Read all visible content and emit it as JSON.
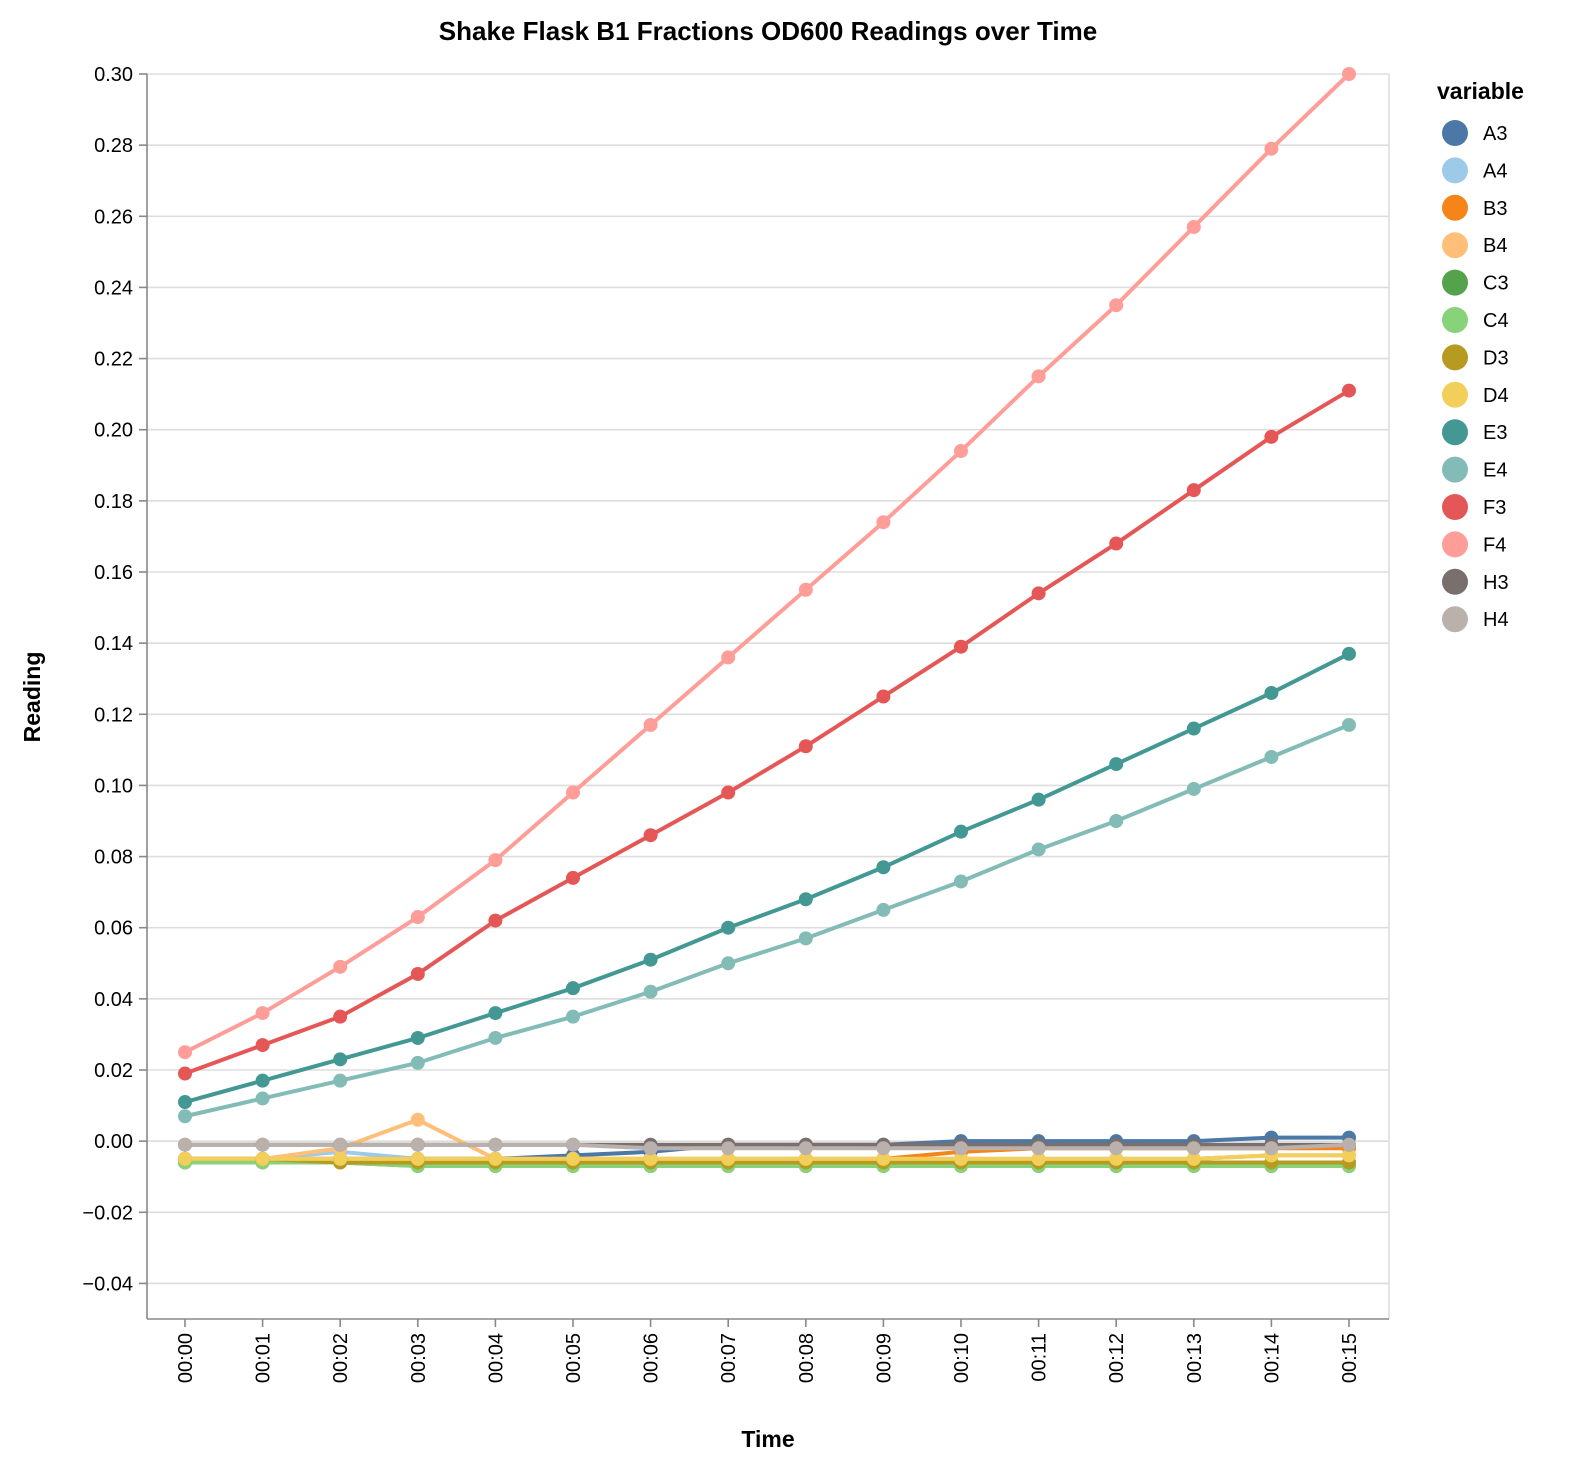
{
  "chart_data": {
    "type": "line",
    "title": "Shake Flask B1 Fractions OD600 Readings over Time",
    "xlabel": "Time",
    "ylabel": "Reading",
    "x": [
      "00:00",
      "00:01",
      "00:02",
      "00:03",
      "00:04",
      "00:05",
      "00:06",
      "00:07",
      "00:08",
      "00:09",
      "00:10",
      "00:11",
      "00:12",
      "00:13",
      "00:14",
      "00:15"
    ],
    "ylim": [
      -0.05,
      0.3
    ],
    "yticks": [
      "0.30",
      "0.28",
      "0.26",
      "0.24",
      "0.22",
      "0.20",
      "0.18",
      "0.16",
      "0.14",
      "0.12",
      "0.10",
      "0.08",
      "0.06",
      "0.04",
      "0.02",
      "0.00",
      "−0.02",
      "−0.04"
    ],
    "ytick_values": [
      0.3,
      0.28,
      0.26,
      0.24,
      0.22,
      0.2,
      0.18,
      0.16,
      0.14,
      0.12,
      0.1,
      0.08,
      0.06,
      0.04,
      0.02,
      0.0,
      -0.02,
      -0.04
    ],
    "grid": true,
    "legend_title": "variable",
    "legend_position": "right",
    "series": [
      {
        "name": "A3",
        "color": "#4c78a8",
        "values": [
          -0.005,
          -0.005,
          -0.005,
          -0.005,
          -0.005,
          -0.004,
          -0.003,
          -0.001,
          -0.001,
          -0.001,
          0.0,
          0.0,
          0.0,
          0.0,
          0.001,
          0.001
        ]
      },
      {
        "name": "A4",
        "color": "#9ecae9",
        "values": [
          -0.005,
          -0.005,
          -0.003,
          -0.005,
          -0.005,
          -0.005,
          -0.005,
          -0.005,
          -0.005,
          -0.005,
          -0.005,
          -0.005,
          -0.005,
          -0.005,
          -0.004,
          -0.004
        ]
      },
      {
        "name": "B3",
        "color": "#f58518",
        "values": [
          -0.005,
          -0.005,
          -0.005,
          -0.005,
          -0.005,
          -0.005,
          -0.005,
          -0.005,
          -0.005,
          -0.005,
          -0.003,
          -0.002,
          -0.002,
          -0.002,
          -0.002,
          -0.002
        ]
      },
      {
        "name": "B4",
        "color": "#ffbf79",
        "values": [
          -0.005,
          -0.005,
          -0.002,
          0.006,
          -0.005,
          -0.005,
          -0.005,
          -0.005,
          -0.005,
          -0.005,
          -0.005,
          -0.005,
          -0.005,
          -0.005,
          -0.004,
          -0.004
        ]
      },
      {
        "name": "C3",
        "color": "#54a24b",
        "values": [
          -0.006,
          -0.006,
          -0.006,
          -0.007,
          -0.007,
          -0.007,
          -0.007,
          -0.007,
          -0.007,
          -0.007,
          -0.007,
          -0.007,
          -0.007,
          -0.007,
          -0.007,
          -0.007
        ]
      },
      {
        "name": "C4",
        "color": "#88d27a",
        "values": [
          -0.006,
          -0.006,
          -0.006,
          -0.007,
          -0.007,
          -0.007,
          -0.007,
          -0.007,
          -0.007,
          -0.007,
          -0.007,
          -0.007,
          -0.007,
          -0.007,
          -0.007,
          -0.007
        ]
      },
      {
        "name": "D3",
        "color": "#b79a20",
        "values": [
          -0.005,
          -0.005,
          -0.006,
          -0.006,
          -0.006,
          -0.006,
          -0.006,
          -0.006,
          -0.006,
          -0.006,
          -0.006,
          -0.006,
          -0.006,
          -0.006,
          -0.006,
          -0.006
        ]
      },
      {
        "name": "D4",
        "color": "#f2cf5b",
        "values": [
          -0.005,
          -0.005,
          -0.005,
          -0.005,
          -0.005,
          -0.005,
          -0.005,
          -0.005,
          -0.005,
          -0.005,
          -0.005,
          -0.005,
          -0.005,
          -0.005,
          -0.004,
          -0.004
        ]
      },
      {
        "name": "E3",
        "color": "#439894",
        "values": [
          0.011,
          0.017,
          0.023,
          0.029,
          0.036,
          0.043,
          0.051,
          0.06,
          0.068,
          0.077,
          0.087,
          0.096,
          0.106,
          0.116,
          0.126,
          0.137
        ]
      },
      {
        "name": "E4",
        "color": "#83bcb6",
        "values": [
          0.007,
          0.012,
          0.017,
          0.022,
          0.029,
          0.035,
          0.042,
          0.05,
          0.057,
          0.065,
          0.073,
          0.082,
          0.09,
          0.099,
          0.108,
          0.117
        ]
      },
      {
        "name": "F3",
        "color": "#e45756",
        "values": [
          0.019,
          0.027,
          0.035,
          0.047,
          0.062,
          0.074,
          0.086,
          0.098,
          0.111,
          0.125,
          0.139,
          0.154,
          0.168,
          0.183,
          0.198,
          0.211
        ]
      },
      {
        "name": "F4",
        "color": "#ff9d98",
        "values": [
          0.025,
          0.036,
          0.049,
          0.063,
          0.079,
          0.098,
          0.117,
          0.136,
          0.155,
          0.174,
          0.194,
          0.215,
          0.235,
          0.257,
          0.279,
          0.3
        ]
      },
      {
        "name": "H3",
        "color": "#79706e",
        "values": [
          -0.001,
          -0.001,
          -0.001,
          -0.001,
          -0.001,
          -0.001,
          -0.001,
          -0.001,
          -0.001,
          -0.001,
          -0.001,
          -0.001,
          -0.001,
          -0.001,
          -0.001,
          -0.001
        ]
      },
      {
        "name": "H4",
        "color": "#bab0ac",
        "values": [
          -0.001,
          -0.001,
          -0.001,
          -0.001,
          -0.001,
          -0.001,
          -0.002,
          -0.002,
          -0.002,
          -0.002,
          -0.002,
          -0.002,
          -0.002,
          -0.002,
          -0.002,
          -0.001
        ]
      }
    ]
  }
}
